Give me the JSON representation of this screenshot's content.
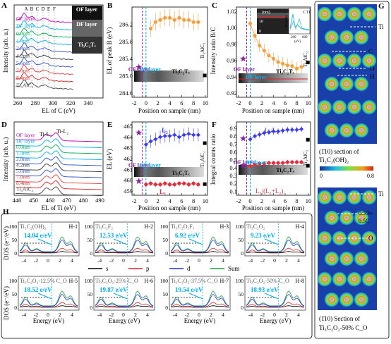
{
  "panelA": {
    "label": "A",
    "ylabel": "Intensity (arb. u.)",
    "xlabel": "EL of C (eV)",
    "peaks": [
      "A",
      "B",
      "C",
      "D",
      "E",
      "F"
    ],
    "xticks": [
      "260",
      "280",
      "300",
      "320",
      "340"
    ],
    "curves": [
      "OF layer",
      "DF layer",
      "0.0nm",
      "1.4nm",
      "2.8nm",
      "4.2nm",
      "5.6nm",
      "7.0nm",
      "8.4nm",
      "Ti₃AlC₂"
    ],
    "curve_colors": [
      "#c000c0",
      "#00b0f0",
      "#00b050",
      "#00b0f0",
      "#3050d0",
      "#303030",
      "#3050d0",
      "#e04040",
      "#e02020",
      "#404040"
    ],
    "box_of": "OF layer",
    "box_df": "DF layer",
    "box_tc": "Ti₃C₂Tₓ"
  },
  "panelB": {
    "label": "B",
    "ylabel": "EL of peak B (eV)",
    "xlabel": "Position on sample (nm)",
    "yticks": [
      "284.6",
      "285.0",
      "285.4",
      "285.8",
      "286.2"
    ],
    "xticks": [
      "-2",
      "0",
      "2",
      "4",
      "6",
      "8",
      "10"
    ],
    "of_label": "OF layer",
    "df_label": "DF layer",
    "tc_label": "Ti₃C₂Tₓ",
    "max_label": "Ti₃AlC₂"
  },
  "panelC": {
    "label": "C",
    "ylabel": "Intensity ratio B/C",
    "xlabel": "Position on sample (nm)",
    "yticks": [
      "0.92",
      "0.94",
      "0.96",
      "0.98",
      "1.00",
      "1.02"
    ],
    "xticks": [
      "-2",
      "0",
      "2",
      "4",
      "6",
      "8",
      "10"
    ],
    "inset_unit": "(nm)",
    "inset_ticks": [
      "10",
      "0"
    ],
    "inset2_ylabel": "Intensity",
    "inset2_x": [
      "200",
      "600"
    ],
    "inset2_unit": "(eV)",
    "inset2_legend": [
      "C",
      "Ti"
    ],
    "of_label": "OF layer",
    "df_label": "DF layer",
    "tc_label": "Ti₃C₂Tₓ",
    "max_label": "Ti₃AlC₂"
  },
  "panelD": {
    "label": "D",
    "ylabel": "Intensity (arb. u.)",
    "xlabel": "EL of Ti (eV)",
    "xticks": [
      "440",
      "450",
      "460",
      "470",
      "480",
      "490"
    ],
    "peaks": [
      "Ti-L₃",
      "Ti-L₂"
    ],
    "curves": [
      "OF layer",
      "DF layer",
      "0.0nm",
      "1.4nm",
      "2.8nm",
      "4.2nm",
      "5.6nm",
      "7.0nm",
      "8.4nm",
      "Ti₃AlC₂"
    ]
  },
  "panelE": {
    "label": "E",
    "ylabel": "EL (eV)",
    "xlabel": "Position on sample (nm)",
    "yticks": [
      "459",
      "460",
      "461",
      "462",
      "463",
      "464",
      "465"
    ],
    "xticks": [
      "-2",
      "0",
      "2",
      "4",
      "6",
      "8",
      "10"
    ],
    "L2": "L₂",
    "L3": "L₃",
    "of_label": "OF layer",
    "df_label": "DF layer",
    "tc_label": "Ti₃C₂Tₓ",
    "max_label": "Ti₃AlC₂"
  },
  "panelF": {
    "label": "F",
    "ylabel": "Integral counts ratio",
    "xlabel": "Position on sample (nm)",
    "yticks": [
      "0.1",
      "0.2",
      "0.3",
      "0.4",
      "0.5",
      "0.6",
      "0.7",
      "0.8",
      "0.9"
    ],
    "xticks": [
      "-2",
      "0",
      "2",
      "4",
      "6",
      "8",
      "10"
    ],
    "ratio1": "L₃/L₂",
    "ratio2": "L₃/(L₃+L₂)",
    "of_label": "OF layer",
    "df_label": "DF layer",
    "tc_label": "Ti₃C₂Tₓ",
    "max_label": "Ti₃AlC₂"
  },
  "panelG": {
    "label": "G",
    "top_caption_1": "(1̄10) section of",
    "top_caption_2": "Ti₃C₂(OH)₂",
    "cb_min": "0",
    "cb_max": "0.8",
    "top_atoms": [
      "Ti",
      "C",
      "O",
      "H"
    ],
    "bottom_atoms": [
      "Ti",
      "0.5O+",
      "0.5C",
      "O"
    ],
    "bottom_caption_1": "(1̄10) Section of",
    "bottom_caption_2": "Ti₃C₂O₂-50% C_O"
  },
  "panelH": {
    "label": "H",
    "ylabel": "DOS (e⁻/eV)",
    "xlabel": "Energy (eV)",
    "yticks": [
      "0",
      "50",
      "100"
    ],
    "xticks": [
      "-4",
      "-2",
      "0",
      "2",
      "4"
    ],
    "legend": [
      "s",
      "p",
      "d",
      "Sum"
    ],
    "subplots": [
      {
        "name": "Ti₃C₂(OH)₂",
        "id": "H-1",
        "value": "14.04 e/eV"
      },
      {
        "name": "Ti₃C₂F₂",
        "id": "H-2",
        "value": "12.53 e/eV"
      },
      {
        "name": "Ti₃C₂O₁F₁",
        "id": "H-3",
        "value": "6.92 e/eV"
      },
      {
        "name": "Ti₃C₂O₂",
        "id": "H-4",
        "value": "9.23 e/eV"
      },
      {
        "name": "Ti₃C₂O₂-12.5% C_O",
        "id": "H-5",
        "value": "18.52 e/eV"
      },
      {
        "name": "Ti₃C₂O₂-25% C_O",
        "id": "H-6",
        "value": "19.87 e/eV"
      },
      {
        "name": "Ti₃C₂O₂-37.5% C_O",
        "id": "H-7",
        "value": "19.54 e/eV"
      },
      {
        "name": "Ti₃C₂O₂-50% C_O",
        "id": "H-8",
        "value": "18.93 e/eV"
      }
    ]
  },
  "colors": {
    "orange": "#f5a040",
    "blue": "#3a3af0",
    "red": "#e03040",
    "purple": "#8a20a0",
    "cyan": "#00b0f0",
    "green": "#20a040",
    "black": "#000000"
  }
}
